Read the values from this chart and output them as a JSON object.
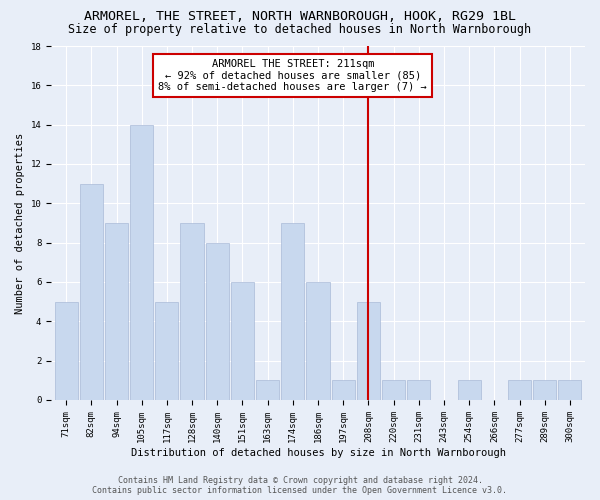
{
  "title": "ARMOREL, THE STREET, NORTH WARNBOROUGH, HOOK, RG29 1BL",
  "subtitle": "Size of property relative to detached houses in North Warnborough",
  "xlabel": "Distribution of detached houses by size in North Warnborough",
  "ylabel": "Number of detached properties",
  "categories": [
    "71sqm",
    "82sqm",
    "94sqm",
    "105sqm",
    "117sqm",
    "128sqm",
    "140sqm",
    "151sqm",
    "163sqm",
    "174sqm",
    "186sqm",
    "197sqm",
    "208sqm",
    "220sqm",
    "231sqm",
    "243sqm",
    "254sqm",
    "266sqm",
    "277sqm",
    "289sqm",
    "300sqm"
  ],
  "values": [
    5,
    11,
    9,
    14,
    5,
    9,
    8,
    6,
    1,
    9,
    6,
    1,
    5,
    1,
    1,
    0,
    1,
    0,
    1,
    1,
    1
  ],
  "bar_color": "#c8d8ee",
  "bar_edgecolor": "#aabbd8",
  "marker_line_color": "#cc0000",
  "annotation_line1": "ARMOREL THE STREET: 211sqm",
  "annotation_line2": "← 92% of detached houses are smaller (85)",
  "annotation_line3": "8% of semi-detached houses are larger (7) →",
  "annotation_box_color": "#cc0000",
  "ylim": [
    0,
    18
  ],
  "yticks": [
    0,
    2,
    4,
    6,
    8,
    10,
    12,
    14,
    16,
    18
  ],
  "background_color": "#e8eef8",
  "plot_background": "#e8eef8",
  "grid_color": "#ffffff",
  "footer_line1": "Contains HM Land Registry data © Crown copyright and database right 2024.",
  "footer_line2": "Contains public sector information licensed under the Open Government Licence v3.0.",
  "title_fontsize": 9.5,
  "subtitle_fontsize": 8.5,
  "axis_label_fontsize": 7.5,
  "tick_fontsize": 6.5,
  "annotation_fontsize": 7.5,
  "footer_fontsize": 6.0
}
